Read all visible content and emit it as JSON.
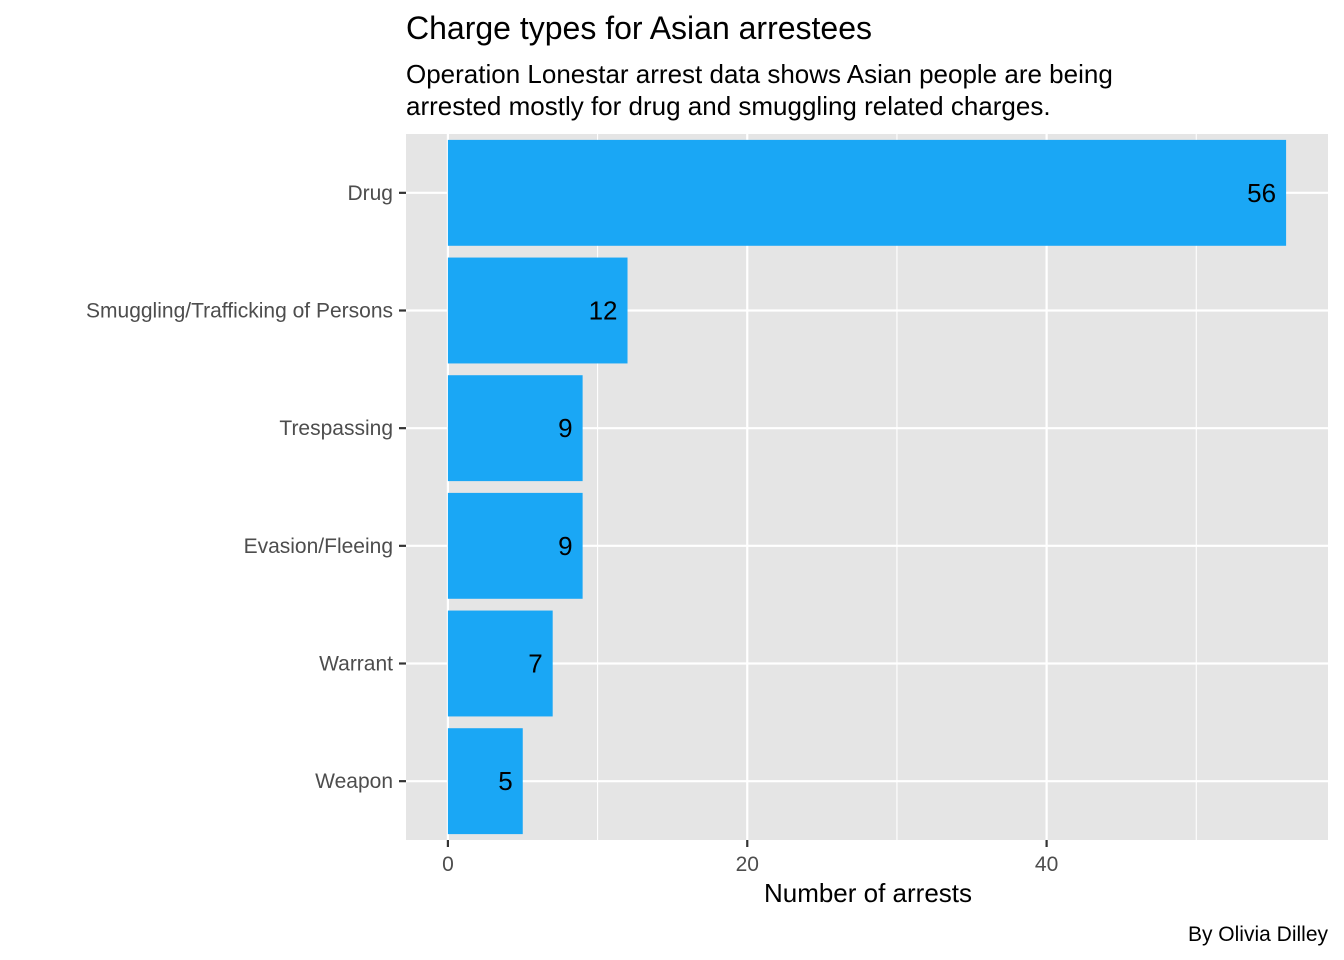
{
  "chart_data": {
    "type": "bar",
    "orientation": "horizontal",
    "title": "Charge types for Asian arrestees",
    "subtitle_lines": [
      "Operation Lonestar arrest data shows Asian people are being",
      "arrested mostly for drug and smuggling related charges."
    ],
    "xlabel": "Number of arrests",
    "ylabel": "",
    "caption": "By Olivia Dilley",
    "categories": [
      "Drug",
      "Smuggling/Trafficking of Persons",
      "Trespassing",
      "Evasion/Fleeing",
      "Warrant",
      "Weapon"
    ],
    "values": [
      56,
      12,
      9,
      9,
      7,
      5
    ],
    "xlim": [
      -2.8,
      58.8
    ],
    "x_major_ticks": [
      0,
      20,
      40
    ],
    "x_minor_ticks": [
      10,
      30,
      50
    ],
    "grid": true,
    "legend": "none",
    "colors": {
      "bar": "#1aa7f5",
      "panel_background": "#e5e5e5",
      "grid": "#ffffff",
      "tick_mark": "#333333"
    }
  }
}
